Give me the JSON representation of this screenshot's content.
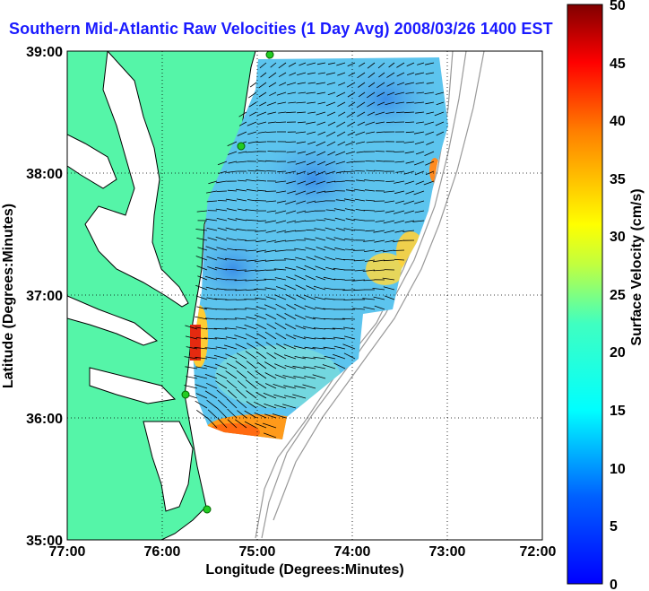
{
  "title": "Southern Mid-Atlantic Raw Velocities (1 Day Avg) 2008/03/26 1400 EST",
  "map": {
    "lon_range": [
      -77,
      -72
    ],
    "lat_range": [
      35,
      39
    ],
    "x_ticks": [
      "77:00",
      "76:00",
      "75:00",
      "74:00",
      "73:00",
      "72:00"
    ],
    "y_ticks": [
      "39:00",
      "38:00",
      "37:00",
      "36:00",
      "35:00"
    ],
    "xlabel": "Longitude (Degrees:Minutes)",
    "ylabel": "Latitude (Degrees:Minutes)",
    "grid": true,
    "land_color": "#55f5a8",
    "ocean_color": "#ffffff",
    "station_color": "#22cc22"
  },
  "colorbar": {
    "label": "Surface Velocity (cm/s)",
    "min": 0,
    "max": 50,
    "ticks": [
      "50",
      "45",
      "40",
      "35",
      "30",
      "25",
      "20",
      "15",
      "10",
      "5",
      "0"
    ]
  }
}
